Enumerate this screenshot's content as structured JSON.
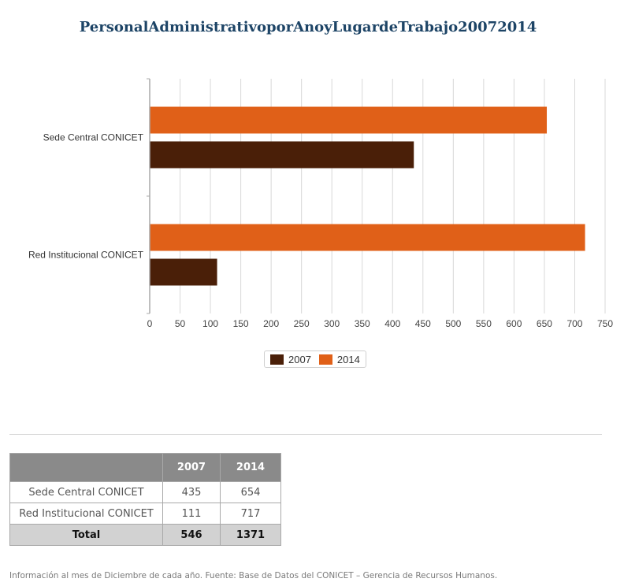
{
  "title": "PersonalAdministrativoporAnoyLugardeTrabajo20072014",
  "colors": {
    "2007": "#4a1f08",
    "2014": "#e06018",
    "grid": "#d8d8d8",
    "axis": "#aaaaaa"
  },
  "chart_data": {
    "type": "bar",
    "orientation": "horizontal",
    "categories": [
      "Sede Central CONICET",
      "Red Institucional CONICET"
    ],
    "series": [
      {
        "name": "2014",
        "values": [
          654,
          717
        ]
      },
      {
        "name": "2007",
        "values": [
          435,
          111
        ]
      }
    ],
    "xlim": [
      0,
      750
    ],
    "x_ticks": [
      0,
      50,
      100,
      150,
      200,
      250,
      300,
      350,
      400,
      450,
      500,
      550,
      600,
      650,
      700,
      750
    ],
    "grid": true,
    "legend": {
      "position": "bottom-center",
      "entries": [
        "2007",
        "2014"
      ]
    }
  },
  "table": {
    "headers": [
      "",
      "2007",
      "2014"
    ],
    "rows": [
      {
        "label": "Sede Central CONICET",
        "v2007": "435",
        "v2014": "654"
      },
      {
        "label": "Red Institucional CONICET",
        "v2007": "111",
        "v2014": "717"
      }
    ],
    "total": {
      "label": "Total",
      "v2007": "546",
      "v2014": "1371"
    }
  },
  "footnote": "Información al mes de Diciembre de cada año. Fuente: Base de Datos del CONICET – Gerencia de Recursos Humanos."
}
